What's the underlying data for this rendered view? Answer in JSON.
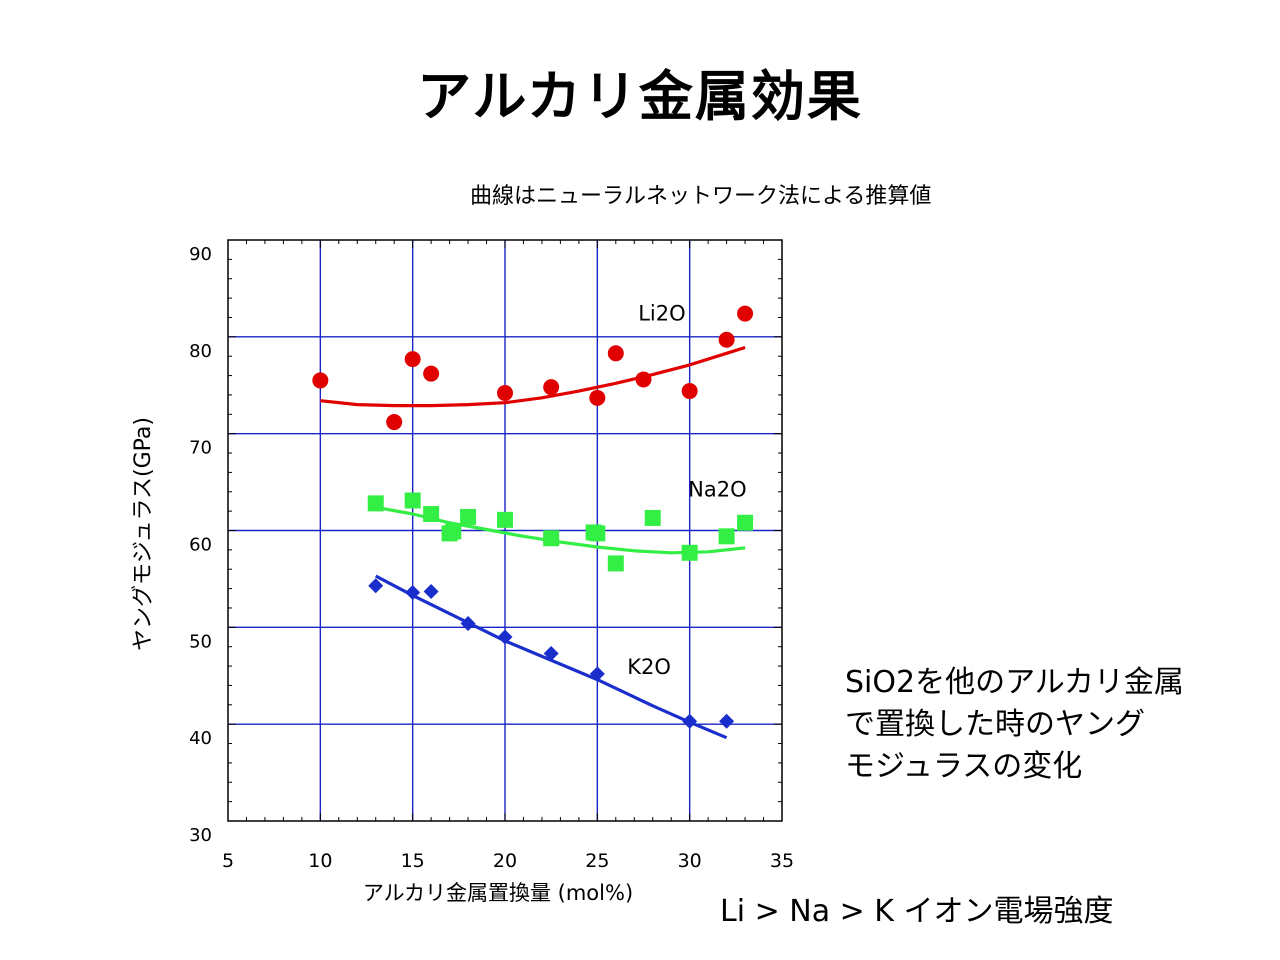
{
  "slide": {
    "title": "アルカリ金属効果",
    "side_note_lines": [
      "SiO2を他のアルカリ金属",
      "で置換した時のヤング",
      "モジュラスの変化"
    ],
    "footer": "Li  >  Na  >  K   イオン電場強度"
  },
  "chart_data": {
    "type": "scatter",
    "title": "",
    "subtitle": "曲線はニューラルネットワーク法による推算値",
    "xlabel": "アルカリ金属置換量 (mol%)",
    "ylabel": "ヤングモジュラス(GPa)",
    "xlim": [
      5,
      35
    ],
    "ylim": [
      30,
      90
    ],
    "xticks": [
      5,
      10,
      15,
      20,
      25,
      30,
      35
    ],
    "yticks": [
      30,
      40,
      50,
      60,
      70,
      80,
      90
    ],
    "grid": true,
    "series": [
      {
        "name": "Li2O",
        "marker": "circle",
        "color": "#e00000",
        "points": [
          [
            10,
            75.5
          ],
          [
            14,
            71.2
          ],
          [
            15,
            77.7
          ],
          [
            16,
            76.2
          ],
          [
            20,
            74.2
          ],
          [
            22.5,
            74.8
          ],
          [
            25,
            73.7
          ],
          [
            26,
            78.3
          ],
          [
            27.5,
            75.6
          ],
          [
            30,
            74.4
          ],
          [
            32,
            79.7
          ],
          [
            33,
            82.4
          ]
        ],
        "curve": [
          [
            10,
            73.4
          ],
          [
            12,
            73.0
          ],
          [
            14,
            72.9
          ],
          [
            16,
            72.9
          ],
          [
            18,
            73.0
          ],
          [
            20,
            73.2
          ],
          [
            22,
            73.7
          ],
          [
            24,
            74.4
          ],
          [
            26,
            75.2
          ],
          [
            28,
            76.1
          ],
          [
            30,
            77.1
          ],
          [
            32,
            78.3
          ],
          [
            33,
            78.9
          ]
        ]
      },
      {
        "name": "Na2O",
        "marker": "square",
        "color": "#33ee44",
        "points": [
          [
            13,
            62.8
          ],
          [
            15,
            63.1
          ],
          [
            16,
            61.7
          ],
          [
            17,
            59.7
          ],
          [
            17.2,
            59.9
          ],
          [
            18,
            61.4
          ],
          [
            20,
            61.1
          ],
          [
            22.5,
            59.2
          ],
          [
            24.8,
            59.8
          ],
          [
            25,
            59.7
          ],
          [
            26,
            56.6
          ],
          [
            28,
            61.3
          ],
          [
            30,
            57.7
          ],
          [
            32,
            59.4
          ],
          [
            33,
            60.8
          ]
        ],
        "curve": [
          [
            13,
            62.4
          ],
          [
            15,
            61.7
          ],
          [
            17,
            60.8
          ],
          [
            19,
            60.1
          ],
          [
            21,
            59.4
          ],
          [
            23,
            58.8
          ],
          [
            25,
            58.3
          ],
          [
            27,
            57.9
          ],
          [
            29,
            57.7
          ],
          [
            31,
            57.8
          ],
          [
            33,
            58.2
          ]
        ]
      },
      {
        "name": "K2O",
        "marker": "diamond",
        "color": "#1a2ecc",
        "points": [
          [
            13,
            54.3
          ],
          [
            15,
            53.6
          ],
          [
            16,
            53.7
          ],
          [
            18,
            50.4
          ],
          [
            20,
            49.0
          ],
          [
            22.5,
            47.3
          ],
          [
            25,
            45.2
          ],
          [
            30,
            40.3
          ],
          [
            32,
            40.3
          ]
        ],
        "curve": [
          [
            13,
            55.3
          ],
          [
            15,
            53.3
          ],
          [
            20,
            48.6
          ],
          [
            25,
            44.6
          ],
          [
            28,
            41.9
          ],
          [
            30,
            40.2
          ],
          [
            32,
            38.6
          ]
        ]
      }
    ],
    "annotations": [
      {
        "text": "Li2O",
        "x": 28.5,
        "y": 81.7
      },
      {
        "text": "Na2O",
        "x": 31.5,
        "y": 63.5
      },
      {
        "text": "K2O",
        "x": 27.8,
        "y": 45.2
      }
    ]
  }
}
